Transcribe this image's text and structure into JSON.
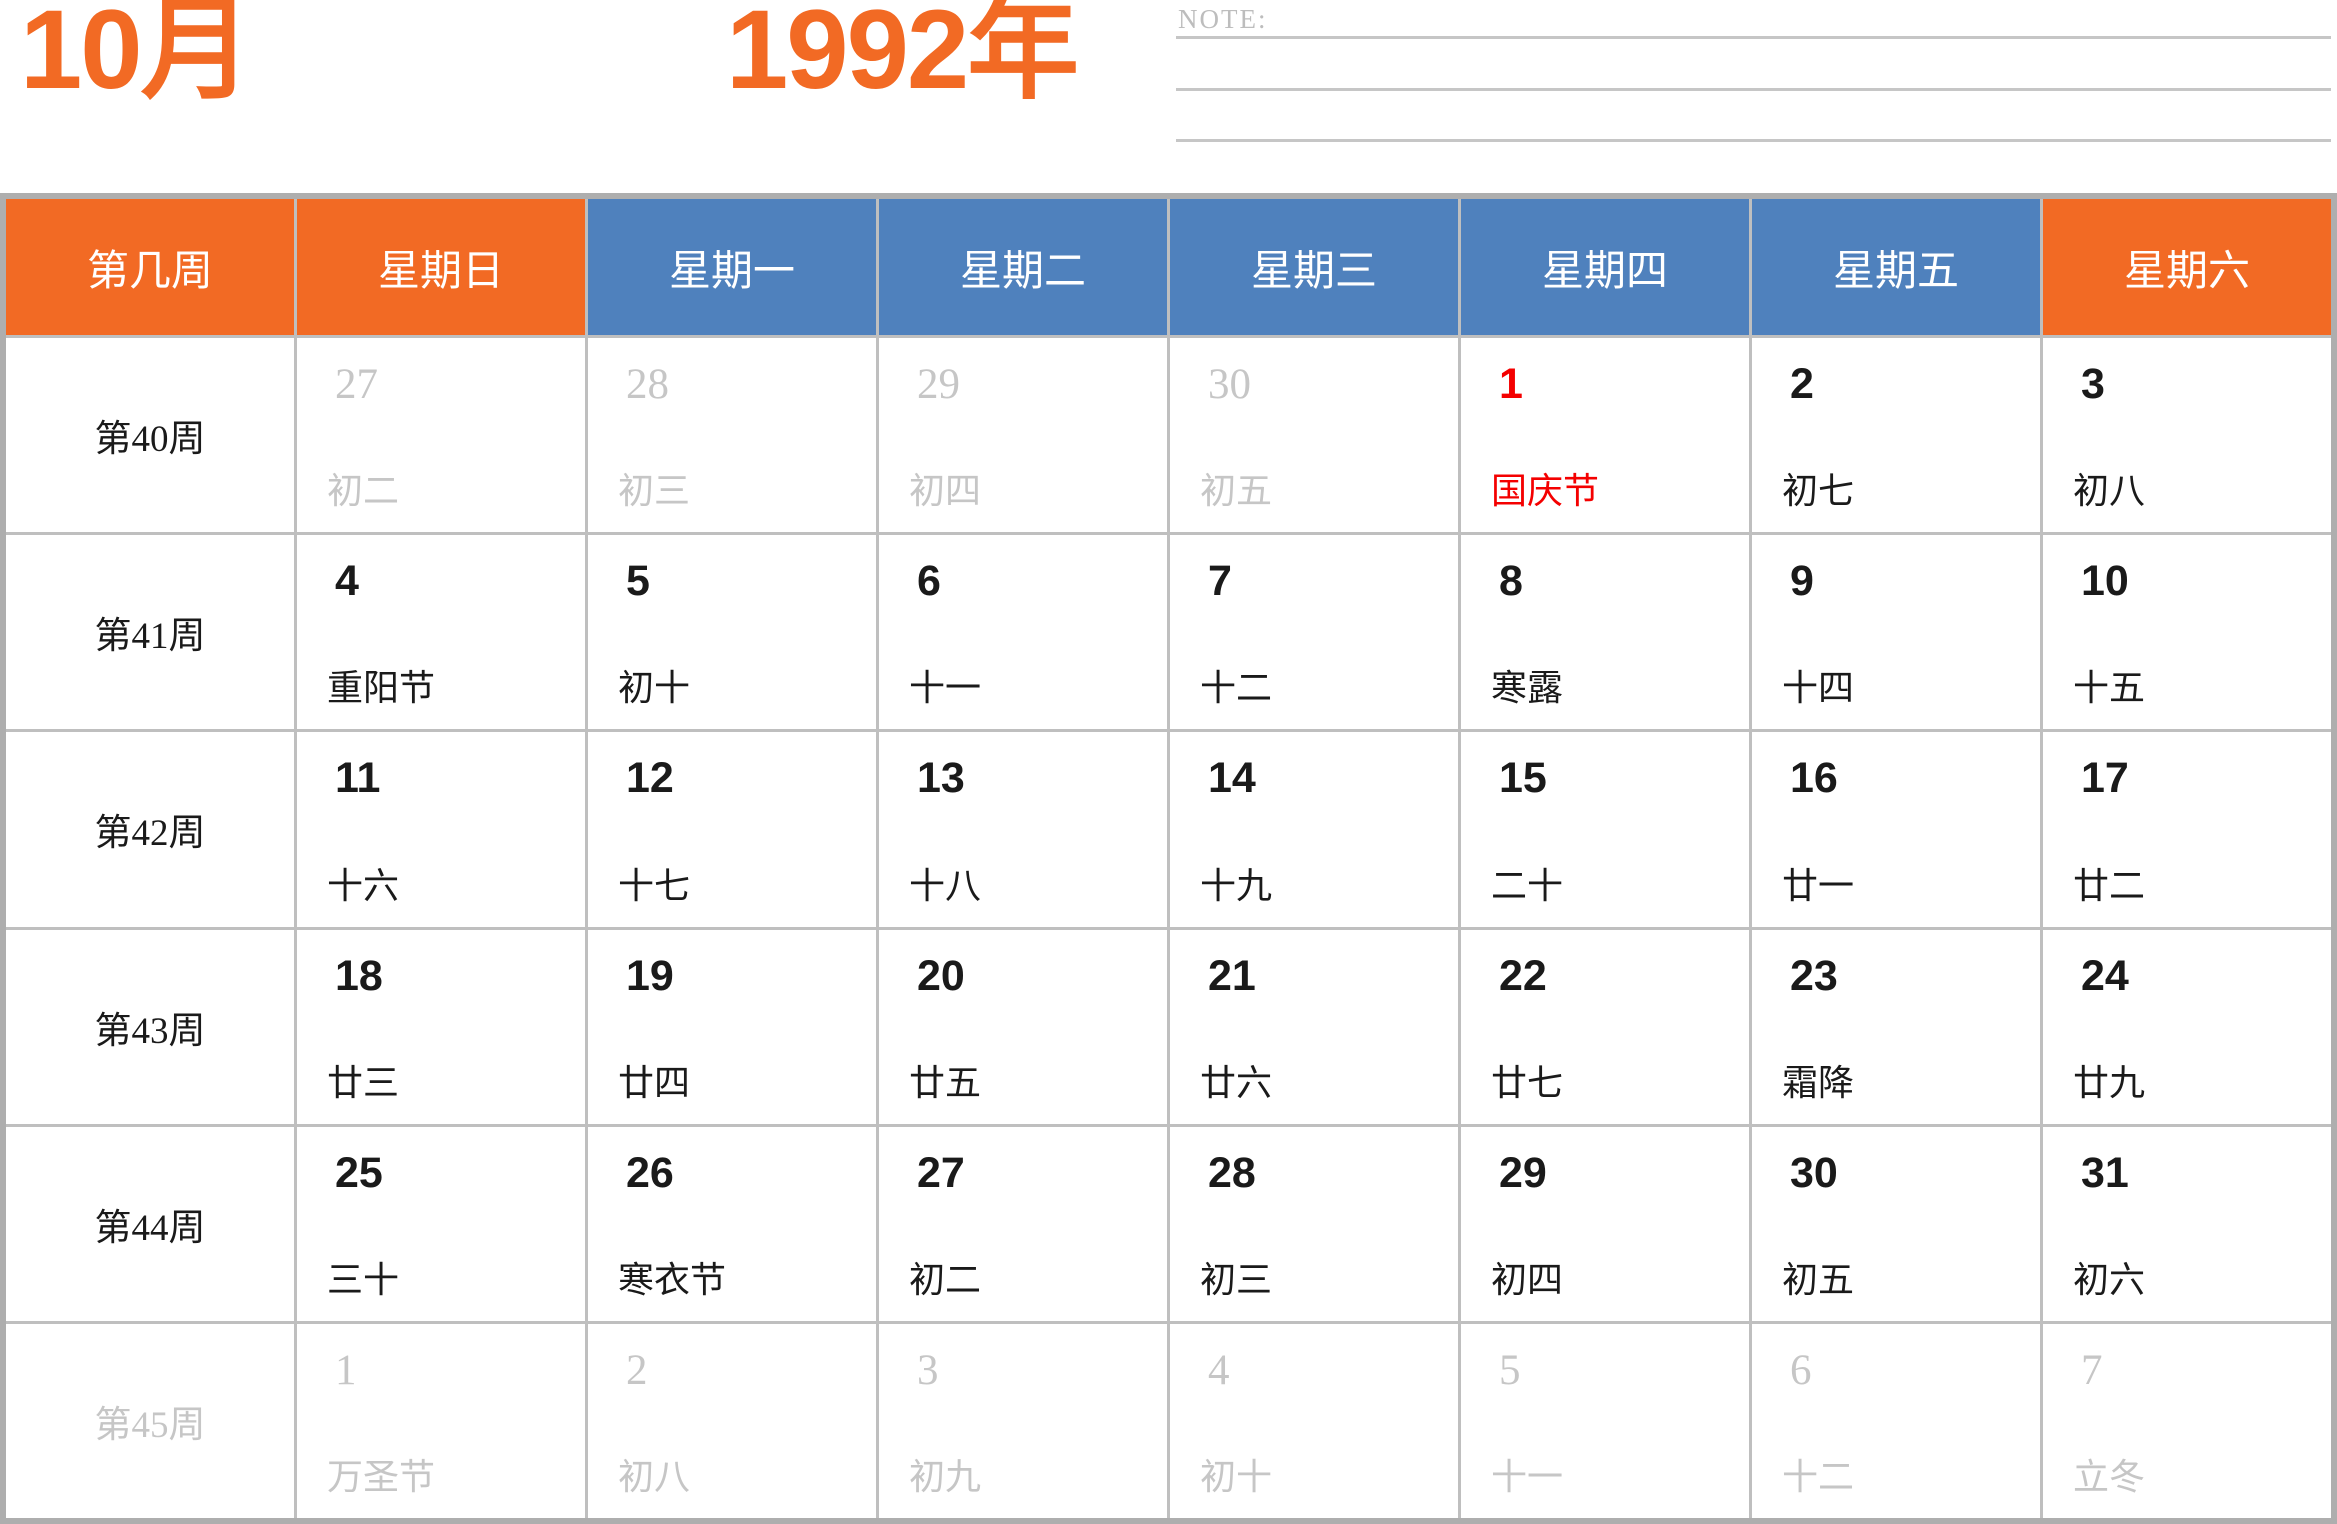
{
  "header": {
    "month_title": "10月",
    "year_title": "1992年",
    "note_label": "NOTE:"
  },
  "colors": {
    "accent_orange": "#F26A24",
    "accent_blue": "#4F81BD",
    "holiday_red": "#F40000",
    "muted_gray": "#C6C6C6",
    "grid_gray": "#BFBFBF"
  },
  "table": {
    "columns": [
      "第几周",
      "星期日",
      "星期一",
      "星期二",
      "星期三",
      "星期四",
      "星期五",
      "星期六"
    ],
    "weeks": [
      {
        "label": "第40周",
        "muted": false,
        "days": [
          {
            "num": "27",
            "lunar": "初二",
            "state": "adjacent"
          },
          {
            "num": "28",
            "lunar": "初三",
            "state": "adjacent"
          },
          {
            "num": "29",
            "lunar": "初四",
            "state": "adjacent"
          },
          {
            "num": "30",
            "lunar": "初五",
            "state": "adjacent"
          },
          {
            "num": "1",
            "lunar": "国庆节",
            "state": "holiday"
          },
          {
            "num": "2",
            "lunar": "初七",
            "state": "normal"
          },
          {
            "num": "3",
            "lunar": "初八",
            "state": "normal"
          }
        ]
      },
      {
        "label": "第41周",
        "muted": false,
        "days": [
          {
            "num": "4",
            "lunar": "重阳节",
            "state": "normal"
          },
          {
            "num": "5",
            "lunar": "初十",
            "state": "normal"
          },
          {
            "num": "6",
            "lunar": "十一",
            "state": "normal"
          },
          {
            "num": "7",
            "lunar": "十二",
            "state": "normal"
          },
          {
            "num": "8",
            "lunar": "寒露",
            "state": "normal"
          },
          {
            "num": "9",
            "lunar": "十四",
            "state": "normal"
          },
          {
            "num": "10",
            "lunar": "十五",
            "state": "normal"
          }
        ]
      },
      {
        "label": "第42周",
        "muted": false,
        "days": [
          {
            "num": "11",
            "lunar": "十六",
            "state": "normal"
          },
          {
            "num": "12",
            "lunar": "十七",
            "state": "normal"
          },
          {
            "num": "13",
            "lunar": "十八",
            "state": "normal"
          },
          {
            "num": "14",
            "lunar": "十九",
            "state": "normal"
          },
          {
            "num": "15",
            "lunar": "二十",
            "state": "normal"
          },
          {
            "num": "16",
            "lunar": "廿一",
            "state": "normal"
          },
          {
            "num": "17",
            "lunar": "廿二",
            "state": "normal"
          }
        ]
      },
      {
        "label": "第43周",
        "muted": false,
        "days": [
          {
            "num": "18",
            "lunar": "廿三",
            "state": "normal"
          },
          {
            "num": "19",
            "lunar": "廿四",
            "state": "normal"
          },
          {
            "num": "20",
            "lunar": "廿五",
            "state": "normal"
          },
          {
            "num": "21",
            "lunar": "廿六",
            "state": "normal"
          },
          {
            "num": "22",
            "lunar": "廿七",
            "state": "normal"
          },
          {
            "num": "23",
            "lunar": "霜降",
            "state": "normal"
          },
          {
            "num": "24",
            "lunar": "廿九",
            "state": "normal"
          }
        ]
      },
      {
        "label": "第44周",
        "muted": false,
        "days": [
          {
            "num": "25",
            "lunar": "三十",
            "state": "normal"
          },
          {
            "num": "26",
            "lunar": "寒衣节",
            "state": "normal"
          },
          {
            "num": "27",
            "lunar": "初二",
            "state": "normal"
          },
          {
            "num": "28",
            "lunar": "初三",
            "state": "normal"
          },
          {
            "num": "29",
            "lunar": "初四",
            "state": "normal"
          },
          {
            "num": "30",
            "lunar": "初五",
            "state": "normal"
          },
          {
            "num": "31",
            "lunar": "初六",
            "state": "normal"
          }
        ]
      },
      {
        "label": "第45周",
        "muted": true,
        "days": [
          {
            "num": "1",
            "lunar": "万圣节",
            "state": "adjacent"
          },
          {
            "num": "2",
            "lunar": "初八",
            "state": "adjacent"
          },
          {
            "num": "3",
            "lunar": "初九",
            "state": "adjacent"
          },
          {
            "num": "4",
            "lunar": "初十",
            "state": "adjacent"
          },
          {
            "num": "5",
            "lunar": "十一",
            "state": "adjacent"
          },
          {
            "num": "6",
            "lunar": "十二",
            "state": "adjacent"
          },
          {
            "num": "7",
            "lunar": "立冬",
            "state": "adjacent"
          }
        ]
      }
    ]
  }
}
